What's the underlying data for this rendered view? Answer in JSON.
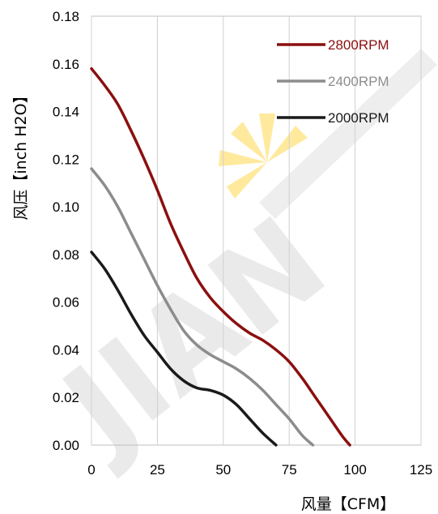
{
  "chart_data": {
    "type": "line",
    "xlabel": "风量【CFM】",
    "ylabel": "风压【inch H2O】",
    "xlim": [
      0,
      125
    ],
    "ylim": [
      0,
      0.18
    ],
    "x_ticks": [
      "0",
      "25",
      "50",
      "75",
      "100",
      "125"
    ],
    "y_ticks": [
      "0.00",
      "0.02",
      "0.04",
      "0.06",
      "0.08",
      "0.10",
      "0.12",
      "0.14",
      "0.16",
      "0.18"
    ],
    "grid": "vertical",
    "legend_position": "top-right",
    "series": [
      {
        "name": "2800RPM",
        "color": "#8b0f0f",
        "x": [
          0,
          5,
          10,
          15,
          20,
          25,
          30,
          35,
          40,
          45,
          50,
          55,
          60,
          65,
          70,
          75,
          80,
          85,
          90,
          95,
          98
        ],
        "y": [
          0.158,
          0.151,
          0.143,
          0.132,
          0.12,
          0.107,
          0.093,
          0.081,
          0.07,
          0.062,
          0.056,
          0.051,
          0.047,
          0.044,
          0.04,
          0.035,
          0.028,
          0.02,
          0.012,
          0.004,
          0.0
        ]
      },
      {
        "name": "2400RPM",
        "color": "#8c8c8c",
        "x": [
          0,
          5,
          10,
          15,
          20,
          25,
          30,
          35,
          40,
          45,
          50,
          55,
          60,
          65,
          70,
          75,
          80,
          84
        ],
        "y": [
          0.116,
          0.109,
          0.1,
          0.089,
          0.078,
          0.067,
          0.057,
          0.048,
          0.042,
          0.038,
          0.035,
          0.032,
          0.028,
          0.023,
          0.017,
          0.011,
          0.004,
          0.0
        ]
      },
      {
        "name": "2000RPM",
        "color": "#1a1a1a",
        "x": [
          0,
          5,
          10,
          15,
          20,
          25,
          30,
          35,
          40,
          45,
          50,
          55,
          60,
          65,
          70
        ],
        "y": [
          0.081,
          0.074,
          0.065,
          0.055,
          0.046,
          0.039,
          0.032,
          0.027,
          0.024,
          0.023,
          0.021,
          0.017,
          0.011,
          0.005,
          0.0
        ]
      }
    ]
  },
  "watermark": {
    "text": "JIAN",
    "text_color": "#d9d9d9",
    "accent_color": "#ffd84d"
  }
}
